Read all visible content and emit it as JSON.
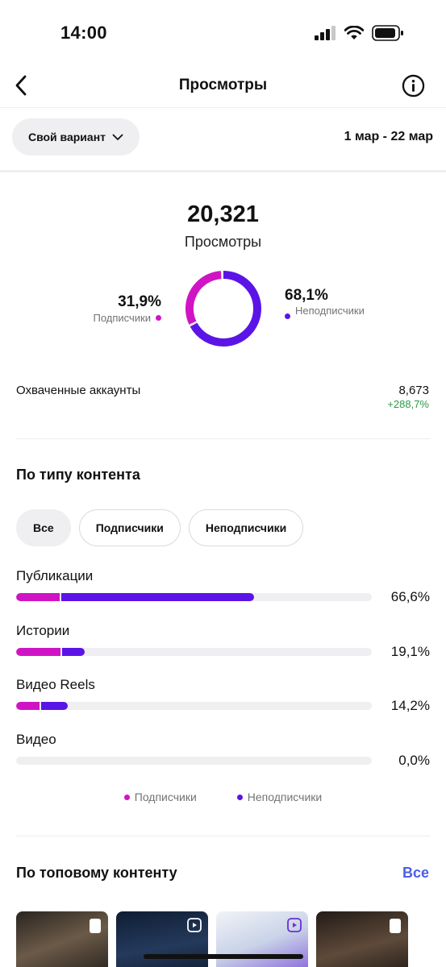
{
  "status": {
    "time": "14:00",
    "icons": [
      "signal-icon",
      "wifi-icon",
      "battery-icon"
    ]
  },
  "nav": {
    "title": "Просмотры",
    "back_icon": "chevron-left-icon",
    "info_icon": "info-icon"
  },
  "filter": {
    "variant_label": "Свой вариант",
    "date_range": "1 мар - 22 мар"
  },
  "summary": {
    "total": "20,321",
    "total_label": "Просмотры",
    "followers_pct": "31,9%",
    "followers_label": "Подписчики",
    "followers_share": 0.319,
    "nonfollowers_pct": "68,1%",
    "nonfollowers_label": "Неподписчики",
    "nonfollowers_share": 0.681
  },
  "reach": {
    "label": "Охваченные аккаунты",
    "value": "8,673",
    "change": "+288,7%"
  },
  "content_type": {
    "title": "По типу контента",
    "chips": [
      {
        "label": "Все",
        "active": true
      },
      {
        "label": "Подписчики",
        "active": false
      },
      {
        "label": "Неподписчики",
        "active": false
      }
    ],
    "rows": [
      {
        "label": "Публикации",
        "pct": "66,6%",
        "followers": 0.125,
        "nonfollowers": 0.541
      },
      {
        "label": "Истории",
        "pct": "19,1%",
        "followers": 0.127,
        "nonfollowers": 0.064
      },
      {
        "label": "Видео Reels",
        "pct": "14,2%",
        "followers": 0.067,
        "nonfollowers": 0.075
      },
      {
        "label": "Видео",
        "pct": "0,0%",
        "followers": 0,
        "nonfollowers": 0
      }
    ],
    "legend": {
      "followers": "Подписчики",
      "nonfollowers": "Неподписчики"
    }
  },
  "top_content": {
    "title": "По топовому контенту",
    "see_all": "Все"
  },
  "colors": {
    "followers": "#d014c5",
    "nonfollowers": "#5b14e6",
    "accent": "#4a5ee8",
    "positive": "#2a9a46"
  }
}
